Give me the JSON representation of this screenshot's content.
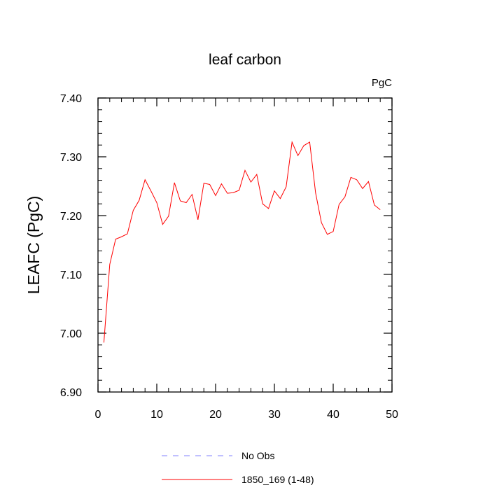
{
  "chart_data": {
    "type": "line",
    "title": "leaf carbon",
    "units_label": "PgC",
    "xlabel": "",
    "ylabel": "LEAFC  (PgC)",
    "xlim": [
      0,
      50
    ],
    "ylim": [
      6.9,
      7.4
    ],
    "x_ticks": [
      "0",
      "10",
      "20",
      "30",
      "40",
      "50"
    ],
    "y_ticks": [
      "6.90",
      "7.00",
      "7.10",
      "7.20",
      "7.30",
      "7.40"
    ],
    "grid": false,
    "legend_position": "bottom",
    "series": [
      {
        "name": "No Obs",
        "color": "#8080ff",
        "dashed": true,
        "x": [],
        "values": []
      },
      {
        "name": "1850_169 (1-48)",
        "color": "#ff0000",
        "dashed": false,
        "x": [
          1,
          2,
          3,
          4,
          5,
          6,
          7,
          8,
          9,
          10,
          11,
          12,
          13,
          14,
          15,
          16,
          17,
          18,
          19,
          20,
          21,
          22,
          23,
          24,
          25,
          26,
          27,
          28,
          29,
          30,
          31,
          32,
          33,
          34,
          35,
          36,
          37,
          38,
          39,
          40,
          41,
          42,
          43,
          44,
          45,
          46,
          47,
          48
        ],
        "values": [
          6.984,
          7.117,
          7.16,
          7.164,
          7.169,
          7.209,
          7.226,
          7.261,
          7.242,
          7.222,
          7.185,
          7.199,
          7.256,
          7.225,
          7.222,
          7.236,
          7.193,
          7.255,
          7.253,
          7.234,
          7.254,
          7.238,
          7.239,
          7.243,
          7.277,
          7.257,
          7.27,
          7.22,
          7.212,
          7.242,
          7.229,
          7.249,
          7.325,
          7.302,
          7.319,
          7.325,
          7.239,
          7.188,
          7.168,
          7.173,
          7.219,
          7.232,
          7.265,
          7.261,
          7.246,
          7.258,
          7.218,
          7.21
        ]
      }
    ]
  }
}
